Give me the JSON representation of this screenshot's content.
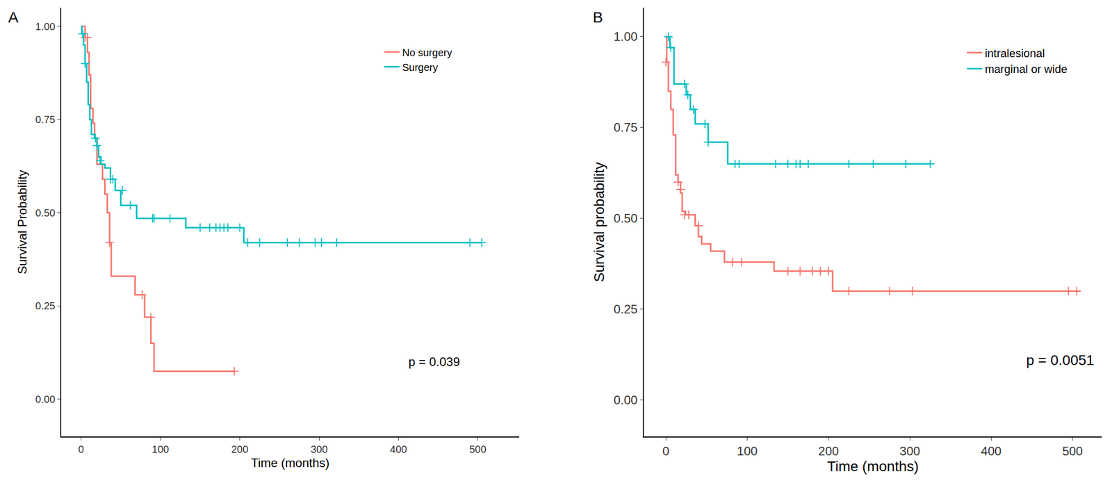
{
  "chart_data": [
    {
      "type": "line",
      "label": "A",
      "legend": "top right",
      "grid": false,
      "x_label": "Time (months)",
      "y_label": "Survival Probability",
      "xlim": [
        -25,
        552
      ],
      "xticks": [
        0,
        100,
        200,
        300,
        400,
        500
      ],
      "ylim": [
        -0.1,
        1.05
      ],
      "yticks": [
        {
          "value": 0,
          "label": "0.00"
        },
        {
          "value": 0.25,
          "label": "0.25"
        },
        {
          "value": 0.5,
          "label": "0.50"
        },
        {
          "value": 0.75,
          "label": "0.75"
        },
        {
          "value": 1,
          "label": "1.00"
        }
      ],
      "annotations": [
        {
          "text": "p = 0.039",
          "x": 445,
          "y": 0.1
        }
      ],
      "series": [
        {
          "name": "No surgery",
          "color": "#F8766D",
          "line_style": "step",
          "marker": "cross",
          "x": [
            0,
            5,
            8,
            10,
            12,
            15,
            17,
            20,
            27,
            30,
            33,
            36,
            38,
            68,
            80,
            88,
            92,
            193
          ],
          "values": [
            1.0,
            0.97,
            0.93,
            0.87,
            0.78,
            0.74,
            0.7,
            0.63,
            0.59,
            0.55,
            0.5,
            0.42,
            0.33,
            0.28,
            0.22,
            0.15,
            0.075,
            0.075
          ],
          "censored": {
            "x": [
              5,
              8,
              36,
              77,
              88,
              193
            ],
            "values": [
              0.97,
              0.97,
              0.42,
              0.28,
              0.22,
              0.075
            ]
          }
        },
        {
          "name": "Surgery",
          "color": "#00BFC4",
          "line_style": "step",
          "marker": "cross",
          "x": [
            0,
            1,
            3,
            5,
            7,
            9,
            11,
            13,
            17,
            20,
            22,
            25,
            30,
            37,
            43,
            50,
            70,
            132,
            205,
            505
          ],
          "values": [
            1.0,
            0.98,
            0.95,
            0.9,
            0.85,
            0.79,
            0.75,
            0.71,
            0.7,
            0.68,
            0.65,
            0.63,
            0.62,
            0.59,
            0.56,
            0.52,
            0.485,
            0.46,
            0.42,
            0.42
          ],
          "censored": {
            "x": [
              2,
              5,
              18,
              20,
              24,
              37,
              40,
              52,
              62,
              90,
              92,
              112,
              150,
              162,
              170,
              175,
              180,
              185,
              200,
              210,
              225,
              260,
              275,
              295,
              303,
              322,
              490,
              505
            ],
            "values": [
              0.98,
              0.9,
              0.7,
              0.68,
              0.64,
              0.59,
              0.59,
              0.56,
              0.52,
              0.485,
              0.485,
              0.485,
              0.46,
              0.46,
              0.46,
              0.46,
              0.46,
              0.46,
              0.46,
              0.42,
              0.42,
              0.42,
              0.42,
              0.42,
              0.42,
              0.42,
              0.42,
              0.42
            ]
          }
        }
      ]
    },
    {
      "type": "line",
      "label": "B",
      "legend": "top right",
      "grid": false,
      "x_label": "Time (months)",
      "y_label": "Survival probability",
      "xlim": [
        -27,
        536
      ],
      "xticks": [
        0,
        100,
        200,
        300,
        400,
        500
      ],
      "ylim": [
        -0.1,
        1.08
      ],
      "yticks": [
        {
          "value": 0,
          "label": "0.00"
        },
        {
          "value": 0.25,
          "label": "0.25"
        },
        {
          "value": 0.5,
          "label": "0.50"
        },
        {
          "value": 0.75,
          "label": "0.75"
        },
        {
          "value": 1,
          "label": "1.00"
        }
      ],
      "annotations": [
        {
          "text": "p = 0.0051",
          "x": 485,
          "y": 0.11
        }
      ],
      "series": [
        {
          "name": "intralesional",
          "color": "#F8766D",
          "line_style": "step",
          "marker": "cross",
          "x": [
            0,
            1,
            3,
            6,
            9,
            12,
            15,
            18,
            20,
            24,
            36,
            40,
            44,
            55,
            72,
            133,
            205,
            510
          ],
          "values": [
            1.0,
            0.93,
            0.85,
            0.8,
            0.73,
            0.62,
            0.6,
            0.57,
            0.52,
            0.51,
            0.48,
            0.45,
            0.43,
            0.41,
            0.38,
            0.355,
            0.3,
            0.3
          ],
          "censored": {
            "x": [
              0,
              15,
              18,
              23,
              28,
              40,
              82,
              93,
              150,
              165,
              180,
              190,
              200,
              225,
              275,
              303,
              495,
              505
            ],
            "values": [
              0.93,
              0.6,
              0.58,
              0.51,
              0.51,
              0.48,
              0.38,
              0.38,
              0.355,
              0.355,
              0.355,
              0.355,
              0.355,
              0.3,
              0.3,
              0.3,
              0.3,
              0.3
            ]
          }
        },
        {
          "name": "marginal or wide",
          "color": "#00BFC4",
          "line_style": "step",
          "marker": "cross",
          "x": [
            0,
            5,
            10,
            25,
            30,
            36,
            52,
            76,
            325
          ],
          "values": [
            1.0,
            0.97,
            0.87,
            0.84,
            0.8,
            0.76,
            0.71,
            0.65,
            0.65
          ],
          "censored": {
            "x": [
              3,
              6,
              23,
              27,
              34,
              48,
              52,
              85,
              90,
              135,
              150,
              160,
              165,
              175,
              225,
              255,
              295,
              325
            ],
            "values": [
              1.0,
              0.97,
              0.87,
              0.84,
              0.8,
              0.76,
              0.71,
              0.65,
              0.65,
              0.65,
              0.65,
              0.65,
              0.65,
              0.65,
              0.65,
              0.65,
              0.65,
              0.65
            ]
          }
        }
      ]
    }
  ]
}
